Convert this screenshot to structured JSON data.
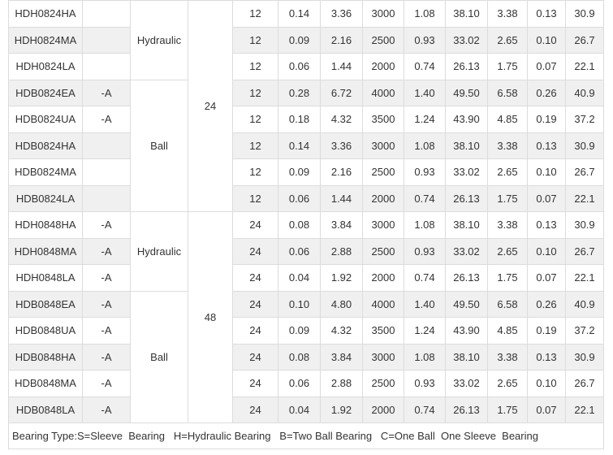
{
  "table": {
    "voltage_groups": [
      {
        "voltage": "24",
        "bearing_groups": [
          {
            "type": "Hydraulic",
            "rows": [
              {
                "model": "HDH0824HA",
                "values": [
                  "12",
                  "0.14",
                  "3.36",
                  "3000",
                  "1.08",
                  "38.10",
                  "3.38",
                  "0.13",
                  "30.9"
                ]
              },
              {
                "model": "HDH0824MA",
                "values": [
                  "12",
                  "0.09",
                  "2.16",
                  "2500",
                  "0.93",
                  "33.02",
                  "2.65",
                  "0.10",
                  "26.7"
                ]
              },
              {
                "model": "HDH0824LA",
                "values": [
                  "12",
                  "0.06",
                  "1.44",
                  "2000",
                  "0.74",
                  "26.13",
                  "1.75",
                  "0.07",
                  "22.1"
                ]
              }
            ]
          },
          {
            "type": "Ball",
            "rows": [
              {
                "model": "HDB0824EA",
                "suffix": "-A",
                "values": [
                  "12",
                  "0.28",
                  "6.72",
                  "4000",
                  "1.40",
                  "49.50",
                  "6.58",
                  "0.26",
                  "40.9"
                ]
              },
              {
                "model": "HDB0824UA",
                "suffix": "-A",
                "values": [
                  "12",
                  "0.18",
                  "4.32",
                  "3500",
                  "1.24",
                  "43.90",
                  "4.85",
                  "0.19",
                  "37.2"
                ]
              },
              {
                "model": "HDB0824HA",
                "values": [
                  "12",
                  "0.14",
                  "3.36",
                  "3000",
                  "1.08",
                  "38.10",
                  "3.38",
                  "0.13",
                  "30.9"
                ]
              },
              {
                "model": "HDB0824MA",
                "values": [
                  "12",
                  "0.09",
                  "2.16",
                  "2500",
                  "0.93",
                  "33.02",
                  "2.65",
                  "0.10",
                  "26.7"
                ]
              },
              {
                "model": "HDB0824LA",
                "values": [
                  "12",
                  "0.06",
                  "1.44",
                  "2000",
                  "0.74",
                  "26.13",
                  "1.75",
                  "0.07",
                  "22.1"
                ]
              }
            ]
          }
        ]
      },
      {
        "voltage": "48",
        "bearing_groups": [
          {
            "type": "Hydraulic",
            "rows": [
              {
                "model": "HDH0848HA",
                "suffix": "-A",
                "values": [
                  "24",
                  "0.08",
                  "3.84",
                  "3000",
                  "1.08",
                  "38.10",
                  "3.38",
                  "0.13",
                  "30.9"
                ]
              },
              {
                "model": "HDH0848MA",
                "suffix": "-A",
                "values": [
                  "24",
                  "0.06",
                  "2.88",
                  "2500",
                  "0.93",
                  "33.02",
                  "2.65",
                  "0.10",
                  "26.7"
                ]
              },
              {
                "model": "HDH0848LA",
                "suffix": "-A",
                "values": [
                  "24",
                  "0.04",
                  "1.92",
                  "2000",
                  "0.74",
                  "26.13",
                  "1.75",
                  "0.07",
                  "22.1"
                ]
              }
            ]
          },
          {
            "type": "Ball",
            "rows": [
              {
                "model": "HDB0848EA",
                "suffix": "-A",
                "values": [
                  "24",
                  "0.10",
                  "4.80",
                  "4000",
                  "1.40",
                  "49.50",
                  "6.58",
                  "0.26",
                  "40.9"
                ]
              },
              {
                "model": "HDB0848UA",
                "suffix": "-A",
                "values": [
                  "24",
                  "0.09",
                  "4.32",
                  "3500",
                  "1.24",
                  "43.90",
                  "4.85",
                  "0.19",
                  "37.2"
                ]
              },
              {
                "model": "HDB0848HA",
                "suffix": "-A",
                "values": [
                  "24",
                  "0.08",
                  "3.84",
                  "3000",
                  "1.08",
                  "38.10",
                  "3.38",
                  "0.13",
                  "30.9"
                ]
              },
              {
                "model": "HDB0848MA",
                "suffix": "-A",
                "values": [
                  "24",
                  "0.06",
                  "2.88",
                  "2500",
                  "0.93",
                  "33.02",
                  "2.65",
                  "0.10",
                  "26.7"
                ]
              },
              {
                "model": "HDB0848LA",
                "suffix": "-A",
                "values": [
                  "24",
                  "0.04",
                  "1.92",
                  "2000",
                  "0.74",
                  "26.13",
                  "1.75",
                  "0.07",
                  "22.1"
                ]
              }
            ]
          }
        ]
      }
    ],
    "footer": "Bearing Type:S=Sleeve  Bearing   H=Hydraulic Bearing   B=Two Ball Bearing   C=One Ball  One Sleeve  Bearing"
  }
}
